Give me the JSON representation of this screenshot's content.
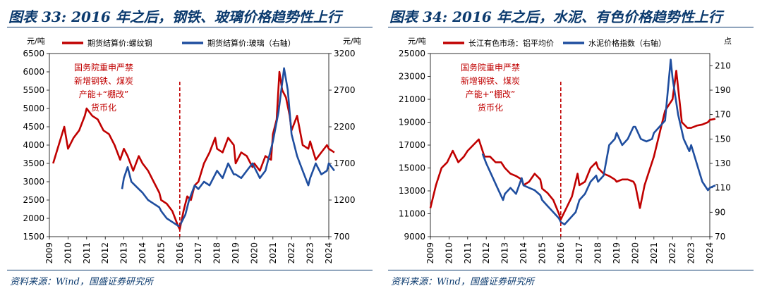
{
  "charts": [
    {
      "title": "图表 33: 2016 年之后，钢铁、玻璃价格趋势性上行",
      "source": "资料来源：Wind，国盛证券研究所",
      "left_unit": "元/吨",
      "right_unit": "元/吨",
      "annotation": [
        "国务院重申严禁",
        "新增钢铁、煤炭",
        "产能+“棚改”",
        "货币化"
      ],
      "legend": [
        "期货结算价:螺纹钢",
        "期货结算价:玻璃（右轴）"
      ]
    },
    {
      "title": "图表 34: 2016 年之后，水泥、有色价格趋势性上行",
      "source": "资料来源：Wind，国盛证券研究所",
      "left_unit": "元/吨",
      "right_unit": "点",
      "annotation": [
        "国务院重申严禁",
        "新增钢铁、煤炭",
        "产能+“棚改”",
        "货币化"
      ],
      "legend": [
        "长江有色市场：铝平均价",
        "水泥价格指数（右轴）"
      ]
    }
  ],
  "chart_data": [
    {
      "type": "line",
      "x_ticks": [
        "2009",
        "2010",
        "2011",
        "2012",
        "2013",
        "2014",
        "2015",
        "2016",
        "2017",
        "2018",
        "2019",
        "2020",
        "2021",
        "2022",
        "2023",
        "2024"
      ],
      "x_range": [
        2009,
        2024
      ],
      "y_left": {
        "range": [
          1500,
          6500
        ],
        "ticks": [
          "1500",
          "2000",
          "2500",
          "3000",
          "3500",
          "4000",
          "4500",
          "5000",
          "5500",
          "6000",
          "6500"
        ]
      },
      "y_right": {
        "range": [
          700,
          3200
        ],
        "ticks": [
          "700",
          "1200",
          "1700",
          "2200",
          "2700",
          "3200"
        ]
      },
      "marker_x": 2016,
      "series": [
        {
          "name": "期货结算价:螺纹钢",
          "axis": "left",
          "color": "#c00000",
          "x": [
            2009.2,
            2009.5,
            2009.8,
            2010.0,
            2010.3,
            2010.6,
            2010.9,
            2011.0,
            2011.3,
            2011.6,
            2011.9,
            2012.2,
            2012.5,
            2012.8,
            2013.0,
            2013.2,
            2013.5,
            2013.8,
            2014.0,
            2014.3,
            2014.6,
            2014.9,
            2015.0,
            2015.3,
            2015.6,
            2015.9,
            2016.0,
            2016.2,
            2016.4,
            2016.6,
            2016.8,
            2017.0,
            2017.3,
            2017.6,
            2017.9,
            2018.0,
            2018.3,
            2018.6,
            2018.9,
            2019.0,
            2019.3,
            2019.6,
            2019.9,
            2020.0,
            2020.3,
            2020.6,
            2020.9,
            2021.0,
            2021.2,
            2021.35,
            2021.5,
            2021.7,
            2021.9,
            2022.0,
            2022.3,
            2022.6,
            2022.9,
            2023.0,
            2023.3,
            2023.6,
            2023.9,
            2024.0,
            2024.3
          ],
          "y": [
            3500,
            4000,
            4500,
            3900,
            4200,
            4400,
            4800,
            5000,
            4800,
            4700,
            4400,
            4300,
            4000,
            3600,
            3900,
            3700,
            3300,
            3700,
            3500,
            3300,
            3000,
            2700,
            2500,
            2400,
            2200,
            1800,
            1700,
            2200,
            2600,
            2500,
            2900,
            3000,
            3500,
            3800,
            4200,
            3900,
            3800,
            4200,
            4000,
            3500,
            3800,
            3700,
            3400,
            3500,
            3300,
            3700,
            3600,
            4300,
            4700,
            6000,
            5500,
            5300,
            4800,
            4400,
            4800,
            4000,
            3900,
            4100,
            3600,
            3800,
            4000,
            3900,
            3800
          ]
        },
        {
          "name": "期货结算价:玻璃（右轴）",
          "axis": "right",
          "color": "#1f4e9f",
          "x": [
            2012.9,
            2013.0,
            2013.2,
            2013.4,
            2013.6,
            2013.8,
            2014.0,
            2014.3,
            2014.6,
            2014.9,
            2015.0,
            2015.3,
            2015.6,
            2015.9,
            2016.0,
            2016.3,
            2016.5,
            2016.8,
            2017.0,
            2017.3,
            2017.6,
            2017.9,
            2018.0,
            2018.3,
            2018.6,
            2018.9,
            2019.0,
            2019.3,
            2019.6,
            2019.9,
            2020.0,
            2020.3,
            2020.6,
            2020.9,
            2021.0,
            2021.3,
            2021.5,
            2021.6,
            2021.8,
            2022.0,
            2022.3,
            2022.6,
            2022.9,
            2023.0,
            2023.3,
            2023.6,
            2023.9,
            2024.0,
            2024.3
          ],
          "y": [
            1350,
            1500,
            1650,
            1450,
            1400,
            1350,
            1300,
            1200,
            1150,
            1100,
            1050,
            950,
            900,
            850,
            850,
            1000,
            1200,
            1400,
            1350,
            1450,
            1400,
            1550,
            1600,
            1500,
            1700,
            1550,
            1550,
            1500,
            1600,
            1700,
            1650,
            1500,
            1600,
            1900,
            2000,
            2400,
            2800,
            3000,
            2700,
            2100,
            1800,
            1600,
            1400,
            1500,
            1700,
            1550,
            1600,
            1700,
            1600
          ]
        }
      ]
    },
    {
      "type": "line",
      "x_ticks": [
        "2009",
        "2010",
        "2011",
        "2012",
        "2013",
        "2014",
        "2015",
        "2016",
        "2017",
        "2018",
        "2019",
        "2020",
        "2021",
        "2022",
        "2023",
        "2024"
      ],
      "x_range": [
        2009,
        2024
      ],
      "y_left": {
        "range": [
          9000,
          25000
        ],
        "ticks": [
          "9000",
          "11000",
          "13000",
          "15000",
          "17000",
          "19000",
          "21000",
          "23000",
          "25000"
        ]
      },
      "y_right": {
        "range": [
          70,
          220
        ],
        "ticks": [
          "70",
          "90",
          "110",
          "130",
          "150",
          "170",
          "190",
          "210"
        ]
      },
      "marker_x": 2016,
      "series": [
        {
          "name": "长江有色市场：铝平均价",
          "axis": "left",
          "color": "#c00000",
          "x": [
            2009.0,
            2009.3,
            2009.6,
            2009.9,
            2010.2,
            2010.5,
            2010.8,
            2011.0,
            2011.3,
            2011.6,
            2011.9,
            2012.2,
            2012.5,
            2012.8,
            2013.0,
            2013.3,
            2013.6,
            2013.9,
            2014.0,
            2014.3,
            2014.6,
            2014.9,
            2015.0,
            2015.3,
            2015.6,
            2015.9,
            2016.0,
            2016.3,
            2016.6,
            2016.9,
            2017.0,
            2017.3,
            2017.6,
            2017.9,
            2018.0,
            2018.3,
            2018.6,
            2018.9,
            2019.0,
            2019.3,
            2019.6,
            2019.9,
            2020.0,
            2020.25,
            2020.5,
            2020.8,
            2021.0,
            2021.3,
            2021.6,
            2021.8,
            2022.0,
            2022.2,
            2022.5,
            2022.8,
            2023.0,
            2023.3,
            2023.6,
            2023.9,
            2024.0,
            2024.3
          ],
          "y": [
            11500,
            13500,
            15000,
            15500,
            16500,
            15500,
            16000,
            16500,
            17000,
            17500,
            16000,
            16000,
            15500,
            15500,
            15000,
            14500,
            14300,
            14000,
            13500,
            13800,
            14500,
            14000,
            13200,
            12800,
            12200,
            11000,
            10500,
            11500,
            12500,
            14500,
            13500,
            13800,
            15000,
            15500,
            15000,
            14500,
            14300,
            14000,
            13800,
            14000,
            14000,
            13800,
            13500,
            11500,
            13500,
            15000,
            16000,
            18000,
            20000,
            20500,
            21000,
            23500,
            19000,
            18500,
            18500,
            18700,
            18800,
            19000,
            19200,
            19300
          ]
        },
        {
          "name": "水泥价格指数（右轴）",
          "axis": "right",
          "color": "#1f4e9f",
          "x": [
            2011.8,
            2012.0,
            2012.3,
            2012.6,
            2012.9,
            2013.0,
            2013.3,
            2013.6,
            2013.9,
            2014.0,
            2014.3,
            2014.6,
            2014.9,
            2015.0,
            2015.3,
            2015.6,
            2015.9,
            2016.0,
            2016.2,
            2016.5,
            2016.8,
            2017.0,
            2017.3,
            2017.6,
            2017.9,
            2018.0,
            2018.3,
            2018.6,
            2018.9,
            2019.0,
            2019.3,
            2019.6,
            2019.9,
            2020.0,
            2020.3,
            2020.6,
            2020.9,
            2021.0,
            2021.3,
            2021.6,
            2021.75,
            2021.9,
            2022.0,
            2022.3,
            2022.6,
            2022.9,
            2023.0,
            2023.3,
            2023.6,
            2023.9,
            2024.0,
            2024.3
          ],
          "y": [
            138,
            130,
            120,
            110,
            100,
            105,
            110,
            105,
            118,
            112,
            110,
            108,
            104,
            100,
            95,
            90,
            85,
            82,
            80,
            85,
            90,
            100,
            105,
            115,
            120,
            115,
            120,
            145,
            150,
            155,
            145,
            150,
            160,
            160,
            150,
            148,
            150,
            155,
            160,
            165,
            190,
            215,
            200,
            170,
            150,
            140,
            145,
            130,
            115,
            108,
            110,
            112
          ]
        }
      ]
    }
  ]
}
